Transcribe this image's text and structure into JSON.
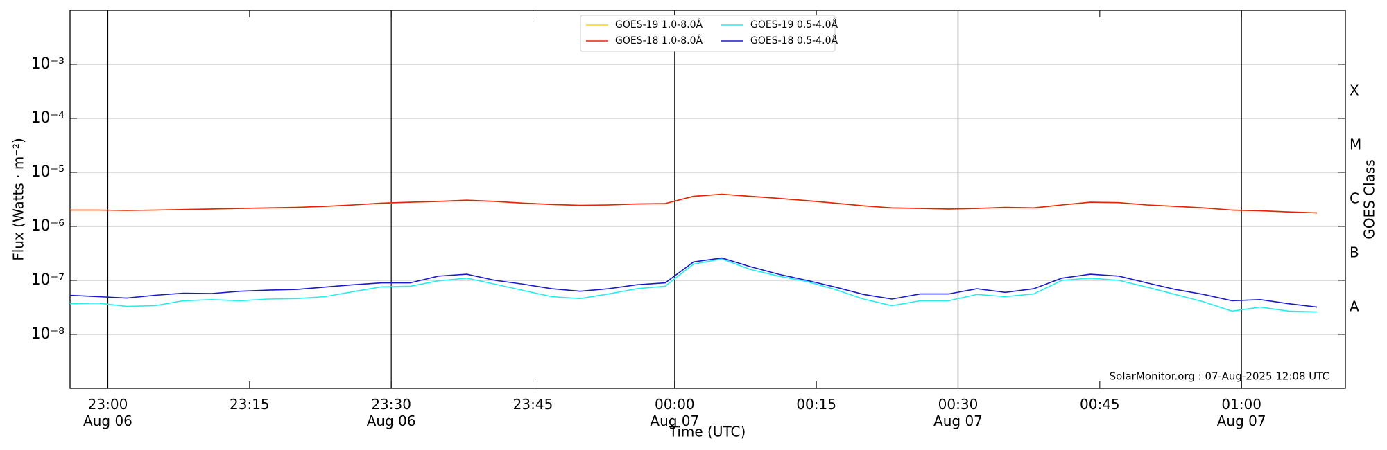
{
  "chart_data": {
    "type": "line",
    "ylabel": "Flux (Watts · m⁻²)",
    "xlabel": "Time (UTC)",
    "y2label": "GOES Class",
    "footnote": "SolarMonitor.org : 07-Aug-2025 12:08 UTC",
    "log_y": true,
    "grid": true,
    "legend": "top",
    "ylim": [
      1e-09,
      0.01
    ],
    "yticks": [
      {
        "value": 1e-08,
        "label": "10⁻⁸"
      },
      {
        "value": 1e-07,
        "label": "10⁻⁷"
      },
      {
        "value": 1e-06,
        "label": "10⁻⁶"
      },
      {
        "value": 1e-05,
        "label": "10⁻⁵"
      },
      {
        "value": 0.0001,
        "label": "10⁻⁴"
      },
      {
        "value": 0.001,
        "label": "10⁻³"
      }
    ],
    "y2lim": [
      1e-09,
      0.01
    ],
    "y2ticks": [
      {
        "value": 3.16e-08,
        "label": "A"
      },
      {
        "value": 3.16e-07,
        "label": "B"
      },
      {
        "value": 3.16e-06,
        "label": "C"
      },
      {
        "value": 3.16e-05,
        "label": "M"
      },
      {
        "value": 0.000316,
        "label": "X"
      }
    ],
    "xlim": [
      "Aug 06 22:56",
      "Aug 07 01:11"
    ],
    "xticks": [
      {
        "value": "Aug 06 23:00",
        "label": "23:00\nAug 06"
      },
      {
        "value": "Aug 06 23:15",
        "label": "23:15"
      },
      {
        "value": "Aug 06 23:30",
        "label": "23:30\nAug 06"
      },
      {
        "value": "Aug 06 23:45",
        "label": "23:45"
      },
      {
        "value": "Aug 07 00:00",
        "label": "00:00\nAug 07"
      },
      {
        "value": "Aug 07 00:15",
        "label": "00:15"
      },
      {
        "value": "Aug 07 00:30",
        "label": "00:30\nAug 07"
      },
      {
        "value": "Aug 07 00:45",
        "label": "00:45"
      },
      {
        "value": "Aug 07 01:00",
        "label": "01:00\nAug 07"
      }
    ],
    "x": [
      "Aug 06 22:56",
      "Aug 06 22:59",
      "Aug 06 23:02",
      "Aug 06 23:05",
      "Aug 06 23:08",
      "Aug 06 23:11",
      "Aug 06 23:14",
      "Aug 06 23:17",
      "Aug 06 23:20",
      "Aug 06 23:23",
      "Aug 06 23:26",
      "Aug 06 23:29",
      "Aug 06 23:32",
      "Aug 06 23:35",
      "Aug 06 23:38",
      "Aug 06 23:41",
      "Aug 06 23:44",
      "Aug 06 23:47",
      "Aug 06 23:50",
      "Aug 06 23:53",
      "Aug 06 23:56",
      "Aug 06 23:59",
      "Aug 07 00:02",
      "Aug 07 00:05",
      "Aug 07 00:08",
      "Aug 07 00:11",
      "Aug 07 00:14",
      "Aug 07 00:17",
      "Aug 07 00:20",
      "Aug 07 00:23",
      "Aug 07 00:26",
      "Aug 07 00:29",
      "Aug 07 00:32",
      "Aug 07 00:35",
      "Aug 07 00:38",
      "Aug 07 00:41",
      "Aug 07 00:44",
      "Aug 07 00:47",
      "Aug 07 00:50",
      "Aug 07 00:53",
      "Aug 07 00:56",
      "Aug 07 00:59",
      "Aug 07 01:02",
      "Aug 07 01:05",
      "Aug 07 01:08"
    ],
    "series": [
      {
        "name": "GOES-19 1.0-8.0Å",
        "color": "#ffd700",
        "values": [
          2e-06,
          2e-06,
          1.97e-06,
          2e-06,
          2.05e-06,
          2.1e-06,
          2.15e-06,
          2.2e-06,
          2.25e-06,
          2.35e-06,
          2.5e-06,
          2.7e-06,
          2.8e-06,
          2.9e-06,
          3.05e-06,
          2.9e-06,
          2.7e-06,
          2.55e-06,
          2.45e-06,
          2.5e-06,
          2.6e-06,
          2.65e-06,
          3.6e-06,
          3.95e-06,
          3.6e-06,
          3.3e-06,
          3e-06,
          2.7e-06,
          2.4e-06,
          2.2e-06,
          2.15e-06,
          2.1e-06,
          2.15e-06,
          2.25e-06,
          2.2e-06,
          2.5e-06,
          2.8e-06,
          2.75e-06,
          2.5e-06,
          2.35e-06,
          2.2e-06,
          2e-06,
          1.95e-06,
          1.85e-06,
          1.78e-06
        ]
      },
      {
        "name": "GOES-18 1.0-8.0Å",
        "color": "#e8200c",
        "values": [
          2e-06,
          2e-06,
          1.97e-06,
          2e-06,
          2.05e-06,
          2.1e-06,
          2.15e-06,
          2.2e-06,
          2.25e-06,
          2.35e-06,
          2.5e-06,
          2.7e-06,
          2.8e-06,
          2.9e-06,
          3.05e-06,
          2.9e-06,
          2.7e-06,
          2.55e-06,
          2.45e-06,
          2.5e-06,
          2.6e-06,
          2.65e-06,
          3.6e-06,
          3.95e-06,
          3.6e-06,
          3.3e-06,
          3e-06,
          2.7e-06,
          2.4e-06,
          2.2e-06,
          2.15e-06,
          2.1e-06,
          2.15e-06,
          2.25e-06,
          2.2e-06,
          2.5e-06,
          2.8e-06,
          2.75e-06,
          2.5e-06,
          2.35e-06,
          2.2e-06,
          2e-06,
          1.95e-06,
          1.85e-06,
          1.78e-06
        ]
      },
      {
        "name": "GOES-19 0.5-4.0Å",
        "color": "#22eeee",
        "values": [
          3.7e-08,
          3.8e-08,
          3.3e-08,
          3.4e-08,
          4.2e-08,
          4.4e-08,
          4.2e-08,
          4.5e-08,
          4.6e-08,
          5e-08,
          6.2e-08,
          7.6e-08,
          7.8e-08,
          9.8e-08,
          1.1e-07,
          8.5e-08,
          6.5e-08,
          5e-08,
          4.6e-08,
          5.6e-08,
          7e-08,
          7.8e-08,
          2e-07,
          2.5e-07,
          1.6e-07,
          1.2e-07,
          9.5e-08,
          6.8e-08,
          4.5e-08,
          3.4e-08,
          4.2e-08,
          4.2e-08,
          5.5e-08,
          5e-08,
          5.6e-08,
          1e-07,
          1.1e-07,
          1e-07,
          7.5e-08,
          5.5e-08,
          4e-08,
          2.7e-08,
          3.2e-08,
          2.7e-08,
          2.6e-08
        ]
      },
      {
        "name": "GOES-18 0.5-4.0Å",
        "color": "#1a1acc",
        "values": [
          5.3e-08,
          5e-08,
          4.7e-08,
          5.3e-08,
          5.8e-08,
          5.7e-08,
          6.3e-08,
          6.6e-08,
          6.8e-08,
          7.5e-08,
          8.3e-08,
          9e-08,
          9e-08,
          1.2e-07,
          1.3e-07,
          1e-07,
          8.5e-08,
          7e-08,
          6.3e-08,
          7e-08,
          8.3e-08,
          9e-08,
          2.2e-07,
          2.6e-07,
          1.8e-07,
          1.3e-07,
          1e-07,
          7.5e-08,
          5.5e-08,
          4.5e-08,
          5.6e-08,
          5.6e-08,
          7e-08,
          6e-08,
          7e-08,
          1.1e-07,
          1.3e-07,
          1.2e-07,
          9e-08,
          6.8e-08,
          5.5e-08,
          4.2e-08,
          4.4e-08,
          3.7e-08,
          3.2e-08
        ]
      }
    ]
  }
}
